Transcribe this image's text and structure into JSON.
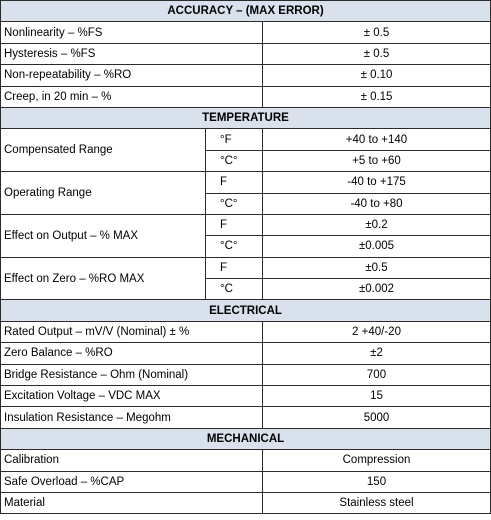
{
  "sections": {
    "accuracy": {
      "title": "ACCURACY – (MAX ERROR)",
      "rows": [
        {
          "label": "Nonlinearity – %FS",
          "value": "± 0.5"
        },
        {
          "label": "Hysteresis – %FS",
          "value": "± 0.5"
        },
        {
          "label": "Non-repeatability – %RO",
          "value": "± 0.10"
        },
        {
          "label": "Creep, in 20 min – %",
          "value": "± 0.15"
        }
      ]
    },
    "temperature": {
      "title": "TEMPERATURE",
      "rows": [
        {
          "label": "Compensated Range",
          "unit1": "°F",
          "value1": "+40 to +140",
          "unit2": "°C°",
          "value2": "+5 to +60"
        },
        {
          "label": "Operating Range",
          "unit1": "F",
          "value1": "-40 to +175",
          "unit2": "°C°",
          "value2": "-40 to +80"
        },
        {
          "label": "Effect on Output – % MAX",
          "unit1": "F",
          "value1": "±0.2",
          "unit2": "°C°",
          "value2": "±0.005"
        },
        {
          "label": "Effect on Zero – %RO MAX",
          "unit1": "F",
          "value1": "±0.5",
          "unit2": "°C",
          "value2": "±0.002"
        }
      ]
    },
    "electrical": {
      "title": "ELECTRICAL",
      "rows": [
        {
          "label": "Rated Output – mV/V (Nominal) ± %",
          "value": "2 +40/-20"
        },
        {
          "label": "Zero Balance – %RO",
          "value": "±2"
        },
        {
          "label": "Bridge Resistance – Ohm (Nominal)",
          "value": "700"
        },
        {
          "label": "Excitation Voltage – VDC MAX",
          "value": "15"
        },
        {
          "label": "Insulation Resistance – Megohm",
          "value": "5000"
        }
      ]
    },
    "mechanical": {
      "title": "MECHANICAL",
      "rows": [
        {
          "label": "Calibration",
          "value": "Compression"
        },
        {
          "label": "Safe Overload – %CAP",
          "value": "150"
        },
        {
          "label": "Material",
          "value": "Stainless steel"
        }
      ]
    }
  }
}
